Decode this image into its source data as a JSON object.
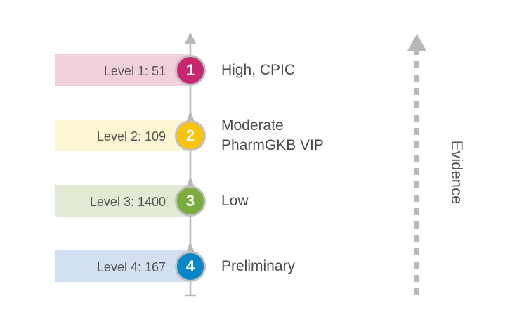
{
  "levels": [
    {
      "number": "1",
      "label": "Level 1: 51",
      "description": [
        "High, CPIC"
      ],
      "bar_color": "#f2d0d9",
      "circle_color": "#c8266e"
    },
    {
      "number": "2",
      "label": "Level 2: 109",
      "description": [
        "Moderate",
        "PharmGKB VIP"
      ],
      "bar_color": "#fdf6d2",
      "circle_color": "#fcc30b"
    },
    {
      "number": "3",
      "label": "Level 3: 1400",
      "description": [
        "Low"
      ],
      "bar_color": "#e2ead6",
      "circle_color": "#7aad3e"
    },
    {
      "number": "4",
      "label": "Level 4: 167",
      "description": [
        "Preliminary"
      ],
      "bar_color": "#d3e0f1",
      "circle_color": "#0a86c8"
    }
  ],
  "axis_label": "Evidence",
  "axis_color": "#b8b8b8"
}
